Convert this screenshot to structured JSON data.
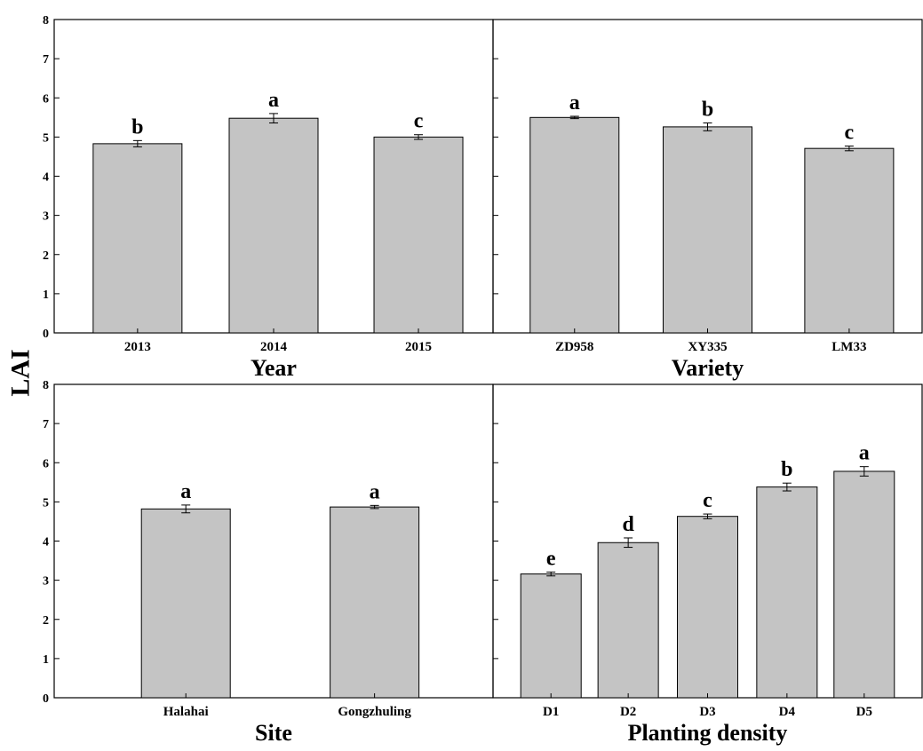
{
  "figure": {
    "ylabel": "LAI",
    "colors": {
      "bar_fill": "#c4c4c4",
      "bar_stroke": "#000000",
      "axis": "#000000"
    }
  },
  "chart_data": [
    {
      "type": "bar",
      "xlabel": "Year",
      "ylabel": "LAI",
      "ylim": [
        0,
        8
      ],
      "yticks": [
        "0",
        "1",
        "2",
        "3",
        "4",
        "5",
        "6",
        "7",
        "8"
      ],
      "grid": false,
      "categories": [
        "2013",
        "2014",
        "2015"
      ],
      "values": [
        4.83,
        5.48,
        5.0
      ],
      "errors": [
        0.08,
        0.12,
        0.06
      ],
      "letters": [
        "b",
        "a",
        "c"
      ]
    },
    {
      "type": "bar",
      "xlabel": "Variety",
      "ylabel": "LAI",
      "ylim": [
        0,
        8
      ],
      "grid": false,
      "categories": [
        "ZD958",
        "XY335",
        "LM33"
      ],
      "values": [
        5.5,
        5.26,
        4.71
      ],
      "errors": [
        0.03,
        0.1,
        0.06
      ],
      "letters": [
        "a",
        "b",
        "c"
      ]
    },
    {
      "type": "bar",
      "xlabel": "Site",
      "ylabel": "LAI",
      "ylim": [
        0,
        8
      ],
      "yticks": [
        "0",
        "1",
        "2",
        "3",
        "4",
        "5",
        "6",
        "7",
        "8"
      ],
      "grid": false,
      "categories": [
        "Halahai",
        "Gongzhuling"
      ],
      "values": [
        4.82,
        4.87
      ],
      "errors": [
        0.1,
        0.04
      ],
      "letters": [
        "a",
        "a"
      ]
    },
    {
      "type": "bar",
      "xlabel": "Planting density",
      "ylabel": "LAI",
      "ylim": [
        0,
        8
      ],
      "grid": false,
      "categories": [
        "D1",
        "D2",
        "D3",
        "D4",
        "D5"
      ],
      "values": [
        3.16,
        3.96,
        4.63,
        5.38,
        5.78
      ],
      "errors": [
        0.05,
        0.12,
        0.06,
        0.1,
        0.12
      ],
      "letters": [
        "e",
        "d",
        "c",
        "b",
        "a"
      ]
    }
  ]
}
